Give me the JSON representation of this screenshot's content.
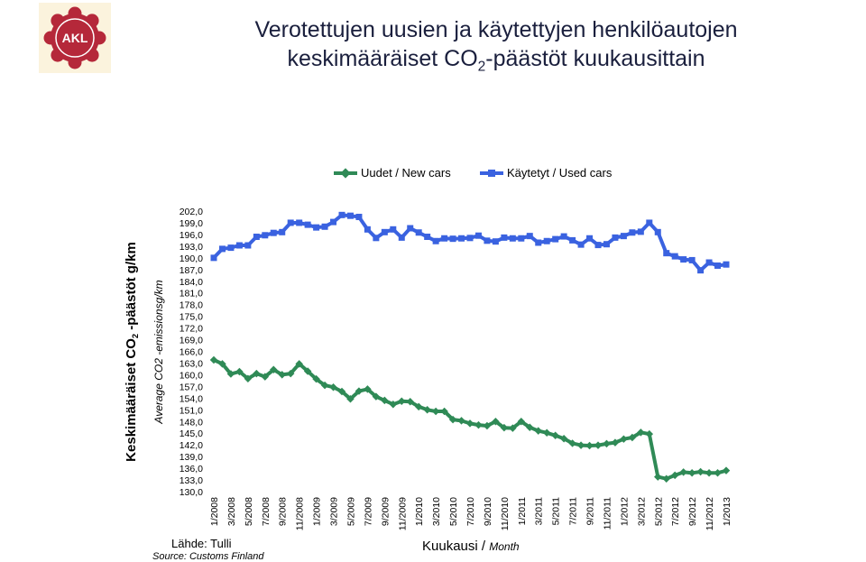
{
  "header": {
    "title_line_1": "Verotettujen uusien ja käytettyjen  henkilöautojen",
    "title_line_2_a": "keskimääräiset CO",
    "title_line_2_sub": "2",
    "title_line_2_b": "-päästöt kuukausittain"
  },
  "logo": {
    "text": "AKL",
    "color": "#b5283a",
    "background": "#fbf3dd"
  },
  "source": {
    "fi": "Lähde: Tulli",
    "en": "Source: Customs Finland"
  },
  "chart_data": {
    "type": "line",
    "legend_position": "top",
    "grid": false,
    "ylim": [
      130,
      202
    ],
    "yticks": [
      "202,0",
      "199,0",
      "196,0",
      "193,0",
      "190,0",
      "187,0",
      "184,0",
      "181,0",
      "178,0",
      "175,0",
      "172,0",
      "169,0",
      "166,0",
      "163,0",
      "160,0",
      "157,0",
      "154,0",
      "151,0",
      "148,0",
      "145,0",
      "142,0",
      "139,0",
      "136,0",
      "133,0",
      "130,0"
    ],
    "xticks": [
      "1/2008",
      "3/2008",
      "5/2008",
      "7/2008",
      "9/2008",
      "11/2008",
      "1/2009",
      "3/2009",
      "5/2009",
      "7/2009",
      "9/2009",
      "11/2009",
      "1/2010",
      "3/2010",
      "5/2010",
      "7/2010",
      "9/2010",
      "11/2010",
      "1/2011",
      "3/2011",
      "5/2011",
      "7/2011",
      "9/2011",
      "11/2011",
      "1/2012",
      "3/2012",
      "5/2012",
      "7/2012",
      "9/2012",
      "11/2012",
      "1/2013"
    ],
    "x": [
      "1/2008",
      "2/2008",
      "3/2008",
      "4/2008",
      "5/2008",
      "6/2008",
      "7/2008",
      "8/2008",
      "9/2008",
      "10/2008",
      "11/2008",
      "12/2008",
      "1/2009",
      "2/2009",
      "3/2009",
      "4/2009",
      "5/2009",
      "6/2009",
      "7/2009",
      "8/2009",
      "9/2009",
      "10/2009",
      "11/2009",
      "12/2009",
      "1/2010",
      "2/2010",
      "3/2010",
      "4/2010",
      "5/2010",
      "6/2010",
      "7/2010",
      "8/2010",
      "9/2010",
      "10/2010",
      "11/2010",
      "12/2010",
      "1/2011",
      "2/2011",
      "3/2011",
      "4/2011",
      "5/2011",
      "6/2011",
      "7/2011",
      "8/2011",
      "9/2011",
      "10/2011",
      "11/2011",
      "12/2011",
      "1/2012",
      "2/2012",
      "3/2012",
      "4/2012",
      "5/2012",
      "6/2012",
      "7/2012",
      "8/2012",
      "9/2012",
      "10/2012",
      "11/2012",
      "12/2012",
      "1/2013"
    ],
    "xlabel": "Kuukausi",
    "xlabel_en": "Month",
    "ylabel_a": "Keskimääräiset CO",
    "ylabel_sub": "2",
    "ylabel_b": " -päästöt g/km",
    "ylabel_en": "Average CO2 -emissionsg/km",
    "series": [
      {
        "name": "Uudet / New cars",
        "color": "#2f8a56",
        "marker": "diamond",
        "values": [
          163.8,
          162.8,
          160.2,
          160.8,
          159.0,
          160.3,
          159.5,
          161.3,
          160.0,
          160.3,
          162.8,
          160.9,
          158.9,
          157.3,
          156.8,
          155.7,
          153.8,
          155.8,
          156.3,
          154.4,
          153.4,
          152.4,
          153.2,
          153.1,
          151.8,
          151.0,
          150.6,
          150.6,
          148.5,
          148.2,
          147.5,
          147.1,
          146.9,
          148.0,
          146.4,
          146.3,
          148.0,
          146.5,
          145.6,
          145.1,
          144.4,
          143.6,
          142.4,
          141.9,
          141.8,
          141.9,
          142.3,
          142.6,
          143.5,
          143.9,
          145.2,
          144.8,
          133.8,
          133.3,
          134.2,
          135.0,
          134.8,
          135.1,
          134.8,
          134.8,
          135.4
        ]
      },
      {
        "name": "Käytetyt / Used cars",
        "color": "#3a62e0",
        "marker": "square",
        "values": [
          190.0,
          192.3,
          192.6,
          193.2,
          193.2,
          195.4,
          195.8,
          196.4,
          196.6,
          199.0,
          199.0,
          198.5,
          197.8,
          198.0,
          199.2,
          201.0,
          200.8,
          200.5,
          197.3,
          195.1,
          196.6,
          197.3,
          195.2,
          197.6,
          196.5,
          195.4,
          194.3,
          195.0,
          194.9,
          195.0,
          195.1,
          195.7,
          194.4,
          194.2,
          195.2,
          195.0,
          195.0,
          195.6,
          193.9,
          194.3,
          194.8,
          195.5,
          194.5,
          193.4,
          195.0,
          193.3,
          193.5,
          195.2,
          195.6,
          196.5,
          196.7,
          199.0,
          196.6,
          191.2,
          190.4,
          189.6,
          189.4,
          186.8,
          188.8,
          188.0,
          188.3
        ]
      }
    ]
  }
}
